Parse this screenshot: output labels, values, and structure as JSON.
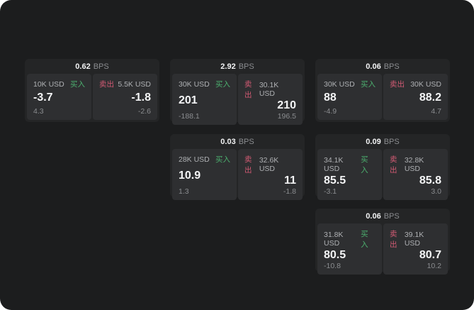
{
  "page": {
    "background": "#1c1d1e",
    "card_background": "#242526",
    "panel_background": "#2e2f31"
  },
  "colors": {
    "buy_accent": "#4caf6e",
    "sell_accent": "#d15a73",
    "primary_text": "#f4f5f6",
    "secondary_text": "#aeb0b3",
    "dim_text": "#8b8d90"
  },
  "labels": {
    "buy": "买入",
    "sell": "卖出",
    "bps_unit": "BPS"
  },
  "cards": [
    {
      "bps": "0.62",
      "buy": {
        "amount": "10K USD",
        "side": "买入",
        "price": "-3.7",
        "delta": "4.3"
      },
      "sell": {
        "side": "卖出",
        "amount": "5.5K USD",
        "price": "-1.8",
        "delta": "-2.6"
      }
    },
    {
      "bps": "2.92",
      "buy": {
        "amount": "30K USD",
        "side": "买入",
        "price": "201",
        "delta": "-188.1"
      },
      "sell": {
        "side": "卖出",
        "amount": "30.1K USD",
        "price": "210",
        "delta": "196.5"
      }
    },
    {
      "bps": "0.06",
      "buy": {
        "amount": "30K USD",
        "side": "买入",
        "price": "88",
        "delta": "-4.9"
      },
      "sell": {
        "side": "卖出",
        "amount": "30K USD",
        "price": "88.2",
        "delta": "4.7"
      }
    },
    {
      "bps": "0.03",
      "buy": {
        "amount": "28K USD",
        "side": "买入",
        "price": "10.9",
        "delta": "1.3"
      },
      "sell": {
        "side": "卖出",
        "amount": "32.6K USD",
        "price": "11",
        "delta": "-1.8"
      }
    },
    {
      "bps": "0.09",
      "buy": {
        "amount": "34.1K USD",
        "side": "买入",
        "price": "85.5",
        "delta": "-3.1"
      },
      "sell": {
        "side": "卖出",
        "amount": "32.8K USD",
        "price": "85.8",
        "delta": "3.0"
      }
    },
    {
      "bps": "0.06",
      "buy": {
        "amount": "31.8K USD",
        "side": "买入",
        "price": "80.5",
        "delta": "-10.8"
      },
      "sell": {
        "side": "卖出",
        "amount": "39.1K USD",
        "price": "80.7",
        "delta": "10.2"
      }
    }
  ]
}
